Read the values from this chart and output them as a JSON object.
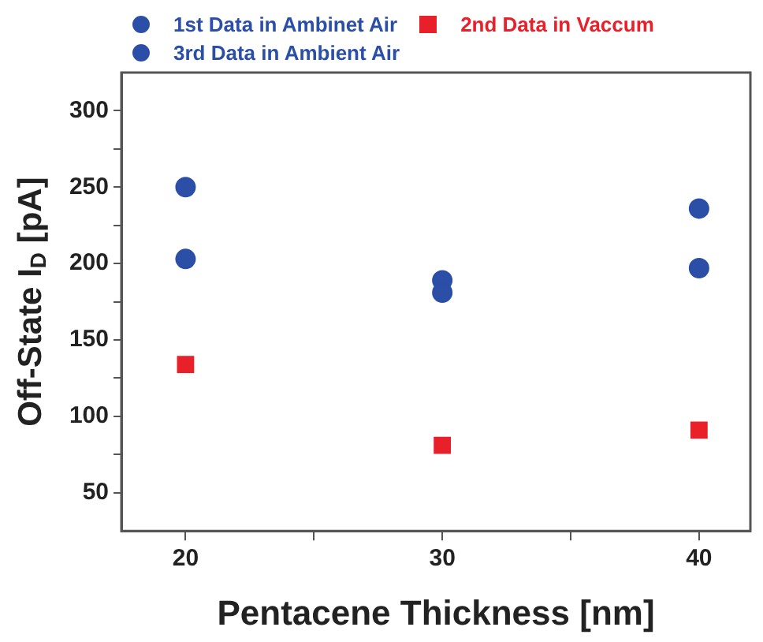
{
  "chart_data": {
    "type": "scatter",
    "xlabel": "Pentacene Thickness [nm]",
    "ylabel": "Off-State I$_{D}$ [pA]",
    "x": [
      20,
      30,
      40
    ],
    "series": [
      {
        "name": "1st Data in Ambinet Air",
        "color": "#2b4ea6",
        "marker": "circle",
        "values": [
          250,
          181,
          236
        ]
      },
      {
        "name": "2nd Data in Vaccum",
        "color": "#e8202a",
        "marker": "square",
        "values": [
          134,
          81,
          91
        ]
      },
      {
        "name": "3rd Data in Ambient Air",
        "color": "#2b4ea6",
        "marker": "circle",
        "values": [
          203,
          189,
          197
        ]
      }
    ],
    "xlim": [
      17.5,
      42
    ],
    "xticks": [
      20,
      {
        "value": 25,
        "label": null
      },
      30,
      {
        "value": 35,
        "label": null
      },
      40
    ],
    "ylim": [
      25,
      325
    ],
    "yticks": [
      50,
      {
        "value": 75,
        "label": null
      },
      100,
      {
        "value": 125,
        "label": null
      },
      150,
      {
        "value": 175,
        "label": null
      },
      200,
      {
        "value": 225,
        "label": null
      },
      250,
      {
        "value": 275,
        "label": null
      },
      300
    ],
    "legend": "top left",
    "grid": false
  }
}
